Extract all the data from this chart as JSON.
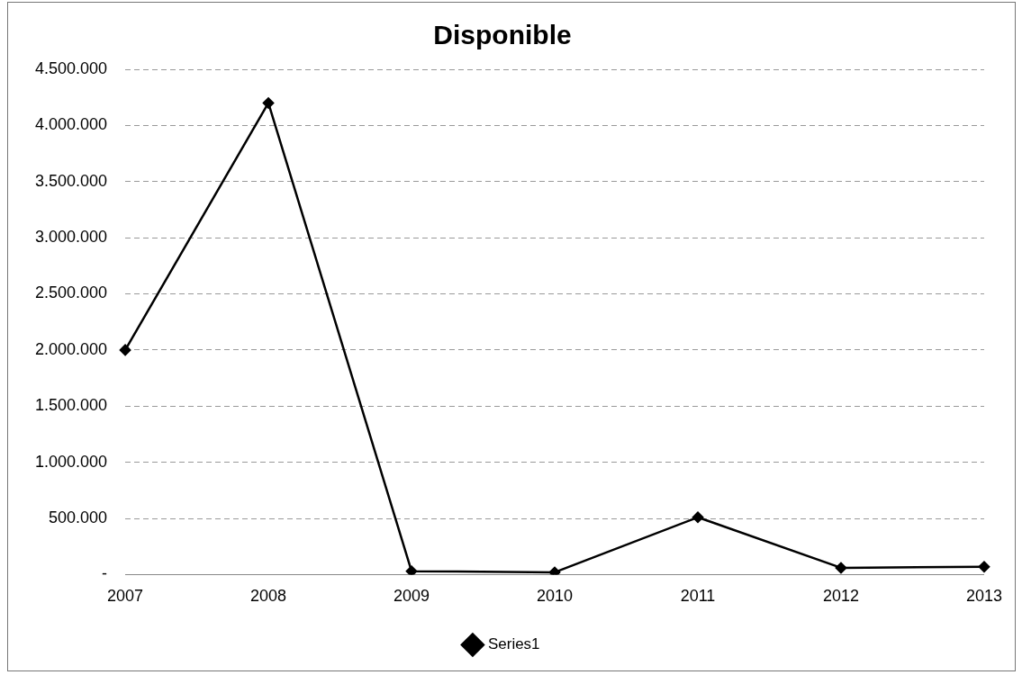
{
  "chart_data": {
    "type": "line",
    "title": "Disponible",
    "categories": [
      "2007",
      "2008",
      "2009",
      "2010",
      "2011",
      "2012",
      "2013"
    ],
    "series": [
      {
        "name": "Series1",
        "color": "#000000",
        "values": [
          2000000,
          4200000,
          30000,
          20000,
          510000,
          60000,
          70000
        ]
      }
    ],
    "ylim": [
      0,
      4500000
    ],
    "yticks": [
      {
        "value": 0,
        "label": "-"
      },
      {
        "value": 500000,
        "label": "500.000"
      },
      {
        "value": 1000000,
        "label": "1.000.000"
      },
      {
        "value": 1500000,
        "label": "1.500.000"
      },
      {
        "value": 2000000,
        "label": "2.000.000"
      },
      {
        "value": 2500000,
        "label": "2.500.000"
      },
      {
        "value": 3000000,
        "label": "3.000.000"
      },
      {
        "value": 3500000,
        "label": "3.500.000"
      },
      {
        "value": 4000000,
        "label": "4.000.000"
      },
      {
        "value": 4500000,
        "label": "4.500.000"
      }
    ],
    "grid": "y",
    "legend": "bottom",
    "marker": "diamond",
    "line_style": "solid"
  }
}
